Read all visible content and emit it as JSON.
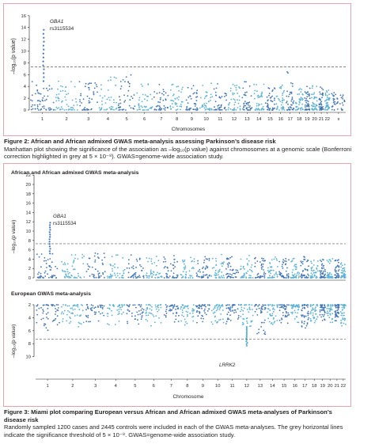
{
  "figure2": {
    "caption_title": "Figure 2: African and African admixed GWAS meta-analysis assessing Parkinson’s disease risk",
    "caption_body": "Manhattan plot showing the significance of the association as –log₁₀(p value) against chromosomes at a genomic scale (Bonferroni correction highlighted in grey at 5 × 10⁻⁸). GWAS=genome-wide association study."
  },
  "figure3": {
    "caption_title": "Figure 3: Miami plot comparing European versus African and African admixed GWAS meta-analyses of Parkinson’s disease risk",
    "caption_body": "Randomly sampled 1200 cases and 2445 controls were included in each of the GWAS meta-analyses. The grey horizontal lines indicate the significance threshold of 5 × 10⁻⁸. GWAS=genome-wide association study."
  },
  "colors": {
    "dark": "#3f74b6",
    "light": "#5bb1d6",
    "threshold": "#5a5a5a",
    "axis": "#231f20"
  },
  "chart_data": [
    {
      "type": "scatter",
      "title": "",
      "xlabel": "Chromosomes",
      "ylabel": "–log10(p value)",
      "ylim": [
        0,
        16
      ],
      "yticks": [
        0,
        2,
        4,
        6,
        8,
        10,
        12,
        14,
        16
      ],
      "categories": [
        "1",
        "2",
        "3",
        "4",
        "5",
        "6",
        "7",
        "8",
        "9",
        "10",
        "11",
        "12",
        "13",
        "14",
        "15",
        "16",
        "17",
        "18",
        "19",
        "20",
        "21",
        "22",
        "X"
      ],
      "tick_labels": [
        "1",
        "2",
        "3",
        "4",
        "5",
        "6",
        "7",
        "8",
        "9",
        "10",
        "11",
        "12",
        "13",
        "14",
        "15",
        "16",
        "17",
        "18",
        "19",
        "20",
        "21",
        "22",
        "x"
      ],
      "baseline_max": [
        4.9,
        5.0,
        5.3,
        5.6,
        6.0,
        5.2,
        5.0,
        4.8,
        4.7,
        4.6,
        4.9,
        4.5,
        4.8,
        4.6,
        4.4,
        4.4,
        6.6,
        4.2,
        4.0,
        4.1,
        3.9,
        3.8,
        3.7
      ],
      "threshold": 7.3,
      "annotations": [
        {
          "chr": "1",
          "label_gene": "GBA1",
          "label_snp": "rs3115534",
          "peak": 13.6
        }
      ],
      "grid": false
    },
    {
      "type": "scatter",
      "title": "African and African admixed GWAS meta-analysis",
      "xlabel": "",
      "ylabel": "–log10(p value)",
      "ylim": [
        0,
        22
      ],
      "yticks": [
        0,
        2,
        4,
        6,
        8,
        10,
        12,
        14,
        16,
        18,
        20,
        22
      ],
      "categories": [
        "1",
        "2",
        "3",
        "4",
        "5",
        "6",
        "7",
        "8",
        "9",
        "10",
        "11",
        "12",
        "13",
        "14",
        "15",
        "16",
        "17",
        "18",
        "19",
        "20",
        "21",
        "22"
      ],
      "baseline_max": [
        5.2,
        5.0,
        5.3,
        5.5,
        5.0,
        5.1,
        4.8,
        5.2,
        4.7,
        5.0,
        4.6,
        4.8,
        4.4,
        4.5,
        4.3,
        4.4,
        4.6,
        4.1,
        4.0,
        4.2,
        3.9,
        3.8
      ],
      "threshold": 7.3,
      "annotations": [
        {
          "chr": "1",
          "label_gene": "GBA1",
          "label_snp": "rs3115534",
          "peak": 11.8
        }
      ],
      "grid": false
    },
    {
      "type": "scatter",
      "title": "European GWAS meta-analysis",
      "xlabel": "Chromosome",
      "ylabel": "–log10(p value)",
      "ylim": [
        2,
        10
      ],
      "yticks": [
        2,
        4,
        6,
        8,
        10
      ],
      "inverted_y": true,
      "categories": [
        "1",
        "2",
        "3",
        "4",
        "5",
        "6",
        "7",
        "8",
        "9",
        "10",
        "11",
        "12",
        "13",
        "14",
        "15",
        "16",
        "17",
        "18",
        "19",
        "20",
        "21",
        "22"
      ],
      "baseline_max": [
        6.0,
        5.4,
        5.8,
        5.2,
        5.0,
        5.4,
        4.8,
        5.2,
        4.9,
        5.0,
        5.0,
        5.4,
        6.6,
        5.1,
        4.9,
        4.8,
        5.6,
        5.0,
        4.6,
        4.8,
        4.5,
        5.3
      ],
      "threshold": 7.3,
      "annotations": [
        {
          "chr": "12",
          "label_gene": "LRRK2",
          "peak": 8.3
        }
      ],
      "grid": false
    }
  ],
  "plot_text": {
    "fig2_ylabel": "–log₁₀(p value)",
    "fig2_xlabel": "Chromosomes",
    "fig2_gene": "GBA1",
    "fig2_snp": "rs3115534",
    "fig3_top_title": "African and African admixed GWAS meta-analysis",
    "fig3_top_ylabel": "–log₁₀(p value)",
    "fig3_top_gene": "GBA1",
    "fig3_top_snp": "rs3115534",
    "fig3_bottom_title": "European GWAS meta-analysis",
    "fig3_bottom_ylabel": "–log₁₀(p value)",
    "fig3_bottom_gene": "LRRK2",
    "fig3_xlabel": "Chromosome"
  }
}
